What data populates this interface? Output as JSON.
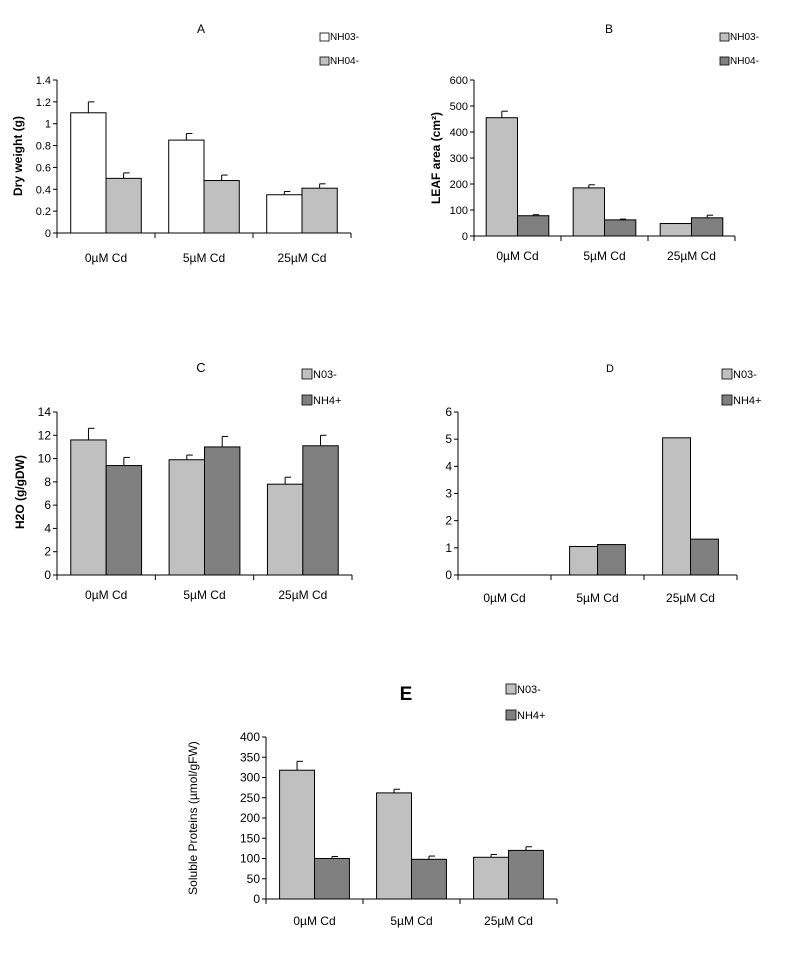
{
  "chart_data": [
    {
      "panel": "A",
      "type": "bar",
      "title": "A",
      "xlabel": "",
      "ylabel": "Dry weight  (g)",
      "ylim": [
        0,
        1.4
      ],
      "yticks": [
        "0",
        "0.2",
        "0.4",
        "0.6",
        "0.8",
        "1",
        "1.2",
        "1.4"
      ],
      "categories": [
        "0µM Cd",
        "5µM Cd",
        "25µM Cd"
      ],
      "series": [
        {
          "name": "NH03-",
          "color": "#ffffff",
          "values": [
            1.1,
            0.85,
            0.35
          ],
          "errors": [
            0.1,
            0.06,
            0.03
          ]
        },
        {
          "name": "NH04-",
          "color": "#c0c0c0",
          "values": [
            0.5,
            0.48,
            0.41
          ],
          "errors": [
            0.05,
            0.05,
            0.04
          ]
        }
      ],
      "legend": "top-right",
      "grid": false
    },
    {
      "panel": "B",
      "type": "bar",
      "title": "B",
      "xlabel": "",
      "ylabel": "LEAF area (cm²)",
      "ylim": [
        0,
        600
      ],
      "yticks": [
        "0",
        "100",
        "200",
        "300",
        "400",
        "500",
        "600"
      ],
      "categories": [
        "0µM Cd",
        "5µM Cd",
        "25µM Cd"
      ],
      "series": [
        {
          "name": "NH03-",
          "color": "#c0c0c0",
          "values": [
            455,
            185,
            48
          ],
          "errors": [
            25,
            12,
            0
          ]
        },
        {
          "name": "NH04-",
          "color": "#808080",
          "values": [
            78,
            62,
            70
          ],
          "errors": [
            4,
            3,
            10
          ]
        }
      ],
      "legend": "top-right",
      "grid": false
    },
    {
      "panel": "C",
      "type": "bar",
      "title": "C",
      "xlabel": "",
      "ylabel": "H2O (g/gDW)",
      "ylim": [
        0,
        14
      ],
      "yticks": [
        "0",
        "2",
        "4",
        "6",
        "8",
        "10",
        "12",
        "14"
      ],
      "categories": [
        "0µM Cd",
        "5µM Cd",
        "25µM Cd"
      ],
      "series": [
        {
          "name": "N03-",
          "color": "#c0c0c0",
          "values": [
            11.6,
            9.9,
            7.8
          ],
          "errors": [
            1.0,
            0.4,
            0.6
          ]
        },
        {
          "name": "NH4+",
          "color": "#808080",
          "values": [
            9.4,
            11.0,
            11.1
          ],
          "errors": [
            0.7,
            0.9,
            0.9
          ]
        }
      ],
      "legend": "top-right",
      "grid": false
    },
    {
      "panel": "D",
      "type": "bar",
      "title": "D",
      "xlabel": "",
      "ylabel": "",
      "ylim": [
        0,
        6
      ],
      "yticks": [
        "0",
        "1",
        "2",
        "3",
        "4",
        "5",
        "6"
      ],
      "categories": [
        "0µM Cd",
        "5µM Cd",
        "25µM Cd"
      ],
      "series": [
        {
          "name": "N03-",
          "color": "#c0c0c0",
          "values": [
            0,
            1.05,
            5.05
          ],
          "errors": [
            0,
            0,
            0
          ]
        },
        {
          "name": "NH4+",
          "color": "#808080",
          "values": [
            0,
            1.12,
            1.32
          ],
          "errors": [
            0,
            0,
            0
          ]
        }
      ],
      "legend": "top-right",
      "grid": false
    },
    {
      "panel": "E",
      "type": "bar",
      "title": "E",
      "xlabel": "",
      "ylabel": "Soluble Proteins (µmol/gFW)",
      "ylim": [
        0,
        400
      ],
      "yticks": [
        "0",
        "50",
        "100",
        "150",
        "200",
        "250",
        "300",
        "350",
        "400"
      ],
      "categories": [
        "0µM Cd",
        "5µM Cd",
        "25µM Cd"
      ],
      "series": [
        {
          "name": "N03-",
          "color": "#c0c0c0",
          "values": [
            318,
            262,
            103
          ],
          "errors": [
            22,
            9,
            7
          ]
        },
        {
          "name": "NH4+",
          "color": "#808080",
          "values": [
            100,
            98,
            120
          ],
          "errors": [
            5,
            8,
            9
          ]
        }
      ],
      "legend": "top-right",
      "grid": false
    }
  ]
}
